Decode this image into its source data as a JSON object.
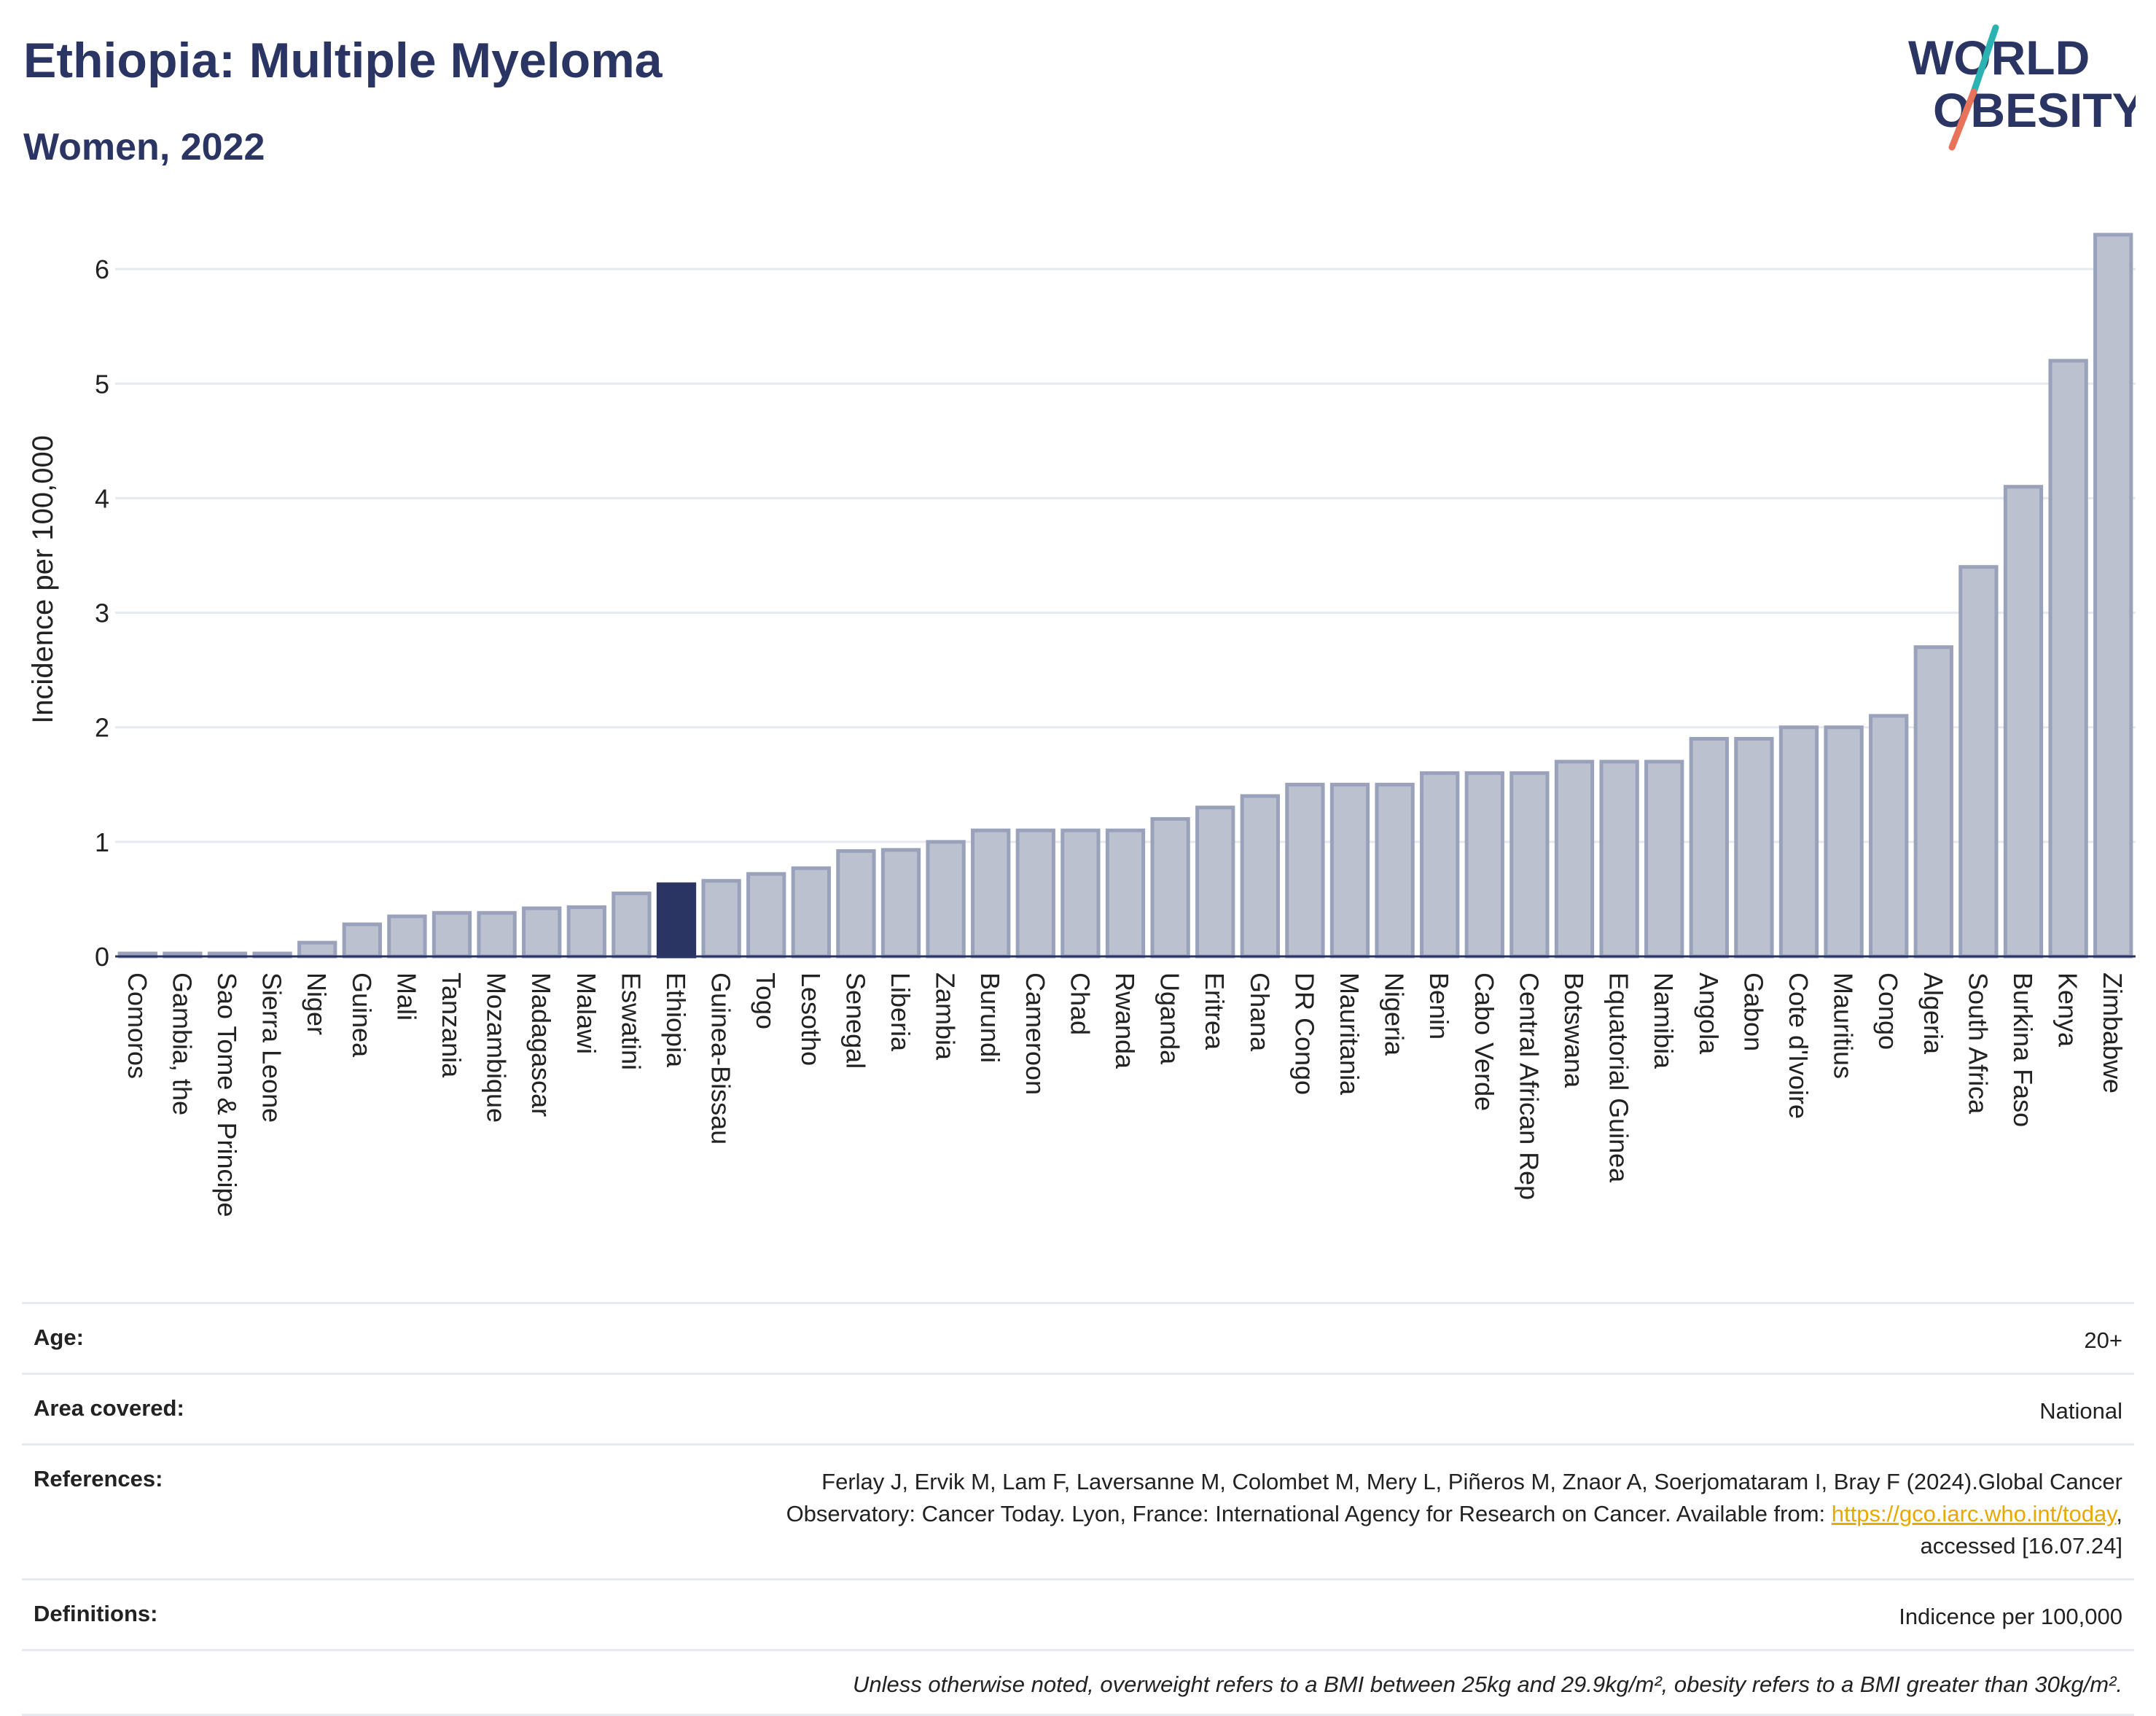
{
  "header": {
    "title": "Ethiopia: Multiple Myeloma",
    "subtitle": "Women, 2022"
  },
  "logo": {
    "line1": "WORLD",
    "line2": "OBESITY",
    "colors": {
      "text": "#2b3563",
      "slash_teal": "#2bb3b1",
      "slash_coral": "#e8735a"
    }
  },
  "chart_data": {
    "type": "bar",
    "ylabel": "Incidence per 100,000",
    "xlabel": "",
    "ylim": [
      0,
      6.3
    ],
    "yticks": [
      0,
      1,
      2,
      3,
      4,
      5,
      6
    ],
    "grid": true,
    "highlight": "Ethiopia",
    "colors": {
      "bar": "#bcc1d0",
      "bar_edge": "#9aa1bb",
      "highlight": "#2b3563",
      "grid": "#e6e9f0",
      "axis": "#2b3563"
    },
    "categories": [
      "Comoros",
      "Gambia, the",
      "Sao Tome & Principe",
      "Sierra Leone",
      "Niger",
      "Guinea",
      "Mali",
      "Tanzania",
      "Mozambique",
      "Madagascar",
      "Malawi",
      "Eswatini",
      "Ethiopia",
      "Guinea-Bissau",
      "Togo",
      "Lesotho",
      "Senegal",
      "Liberia",
      "Zambia",
      "Burundi",
      "Cameroon",
      "Chad",
      "Rwanda",
      "Uganda",
      "Eritrea",
      "Ghana",
      "DR Congo",
      "Mauritania",
      "Nigeria",
      "Benin",
      "Cabo Verde",
      "Central African Rep",
      "Botswana",
      "Equatorial Guinea",
      "Namibia",
      "Angola",
      "Gabon",
      "Cote d'Ivoire",
      "Mauritius",
      "Congo",
      "Algeria",
      "South Africa",
      "Burkina Faso",
      "Kenya",
      "Zimbabwe"
    ],
    "values": [
      0.02,
      0.02,
      0.02,
      0.02,
      0.12,
      0.28,
      0.35,
      0.38,
      0.38,
      0.42,
      0.43,
      0.55,
      0.63,
      0.66,
      0.72,
      0.77,
      0.92,
      0.93,
      1.0,
      1.1,
      1.1,
      1.1,
      1.1,
      1.2,
      1.3,
      1.4,
      1.5,
      1.5,
      1.5,
      1.6,
      1.6,
      1.6,
      1.7,
      1.7,
      1.7,
      1.9,
      1.9,
      2.0,
      2.0,
      2.1,
      2.7,
      3.4,
      4.1,
      5.2,
      6.3
    ]
  },
  "info": {
    "age_label": "Age:",
    "age_value": "20+",
    "area_label": "Area covered:",
    "area_value": "National",
    "references_label": "References:",
    "references_text_1": "Ferlay J, Ervik M, Lam F, Laversanne M, Colombet M, Mery L, Piñeros M, Znaor A, Soerjomataram I, Bray F (2024).Global Cancer",
    "references_text_2": "Observatory: Cancer Today. Lyon, France: International Agency for Research on Cancer. Available from: ",
    "references_link": "https://gco.iarc.who.int/today",
    "references_text_3": ",",
    "references_text_4": "accessed [16.07.24]",
    "definitions_label": "Definitions:",
    "definitions_value": "Indicence per 100,000",
    "note": "Unless otherwise noted, overweight refers to a BMI between 25kg and 29.9kg/m², obesity refers to a BMI greater than 30kg/m²."
  }
}
